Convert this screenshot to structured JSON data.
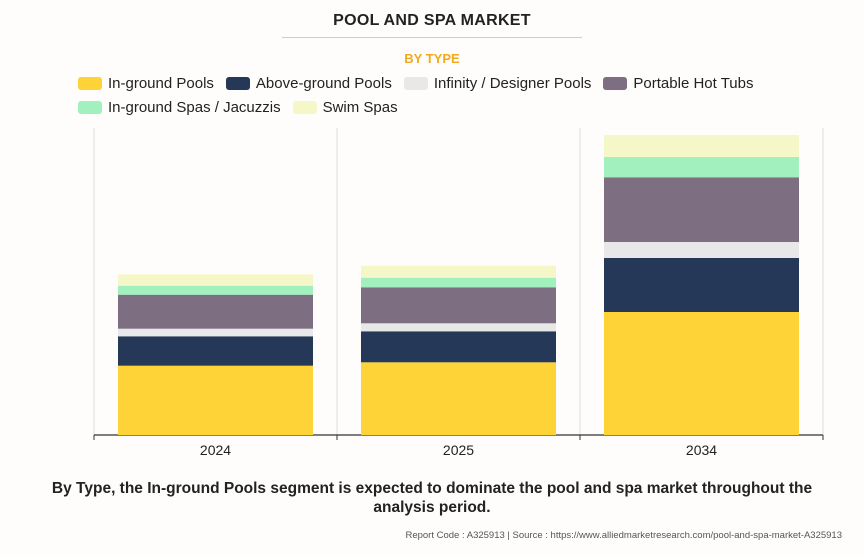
{
  "chart_data": {
    "type": "bar",
    "stacked": true,
    "title": "POOL AND SPA MARKET",
    "subtitle": "BY TYPE",
    "categories": [
      "2024",
      "2025",
      "2034"
    ],
    "series": [
      {
        "name": "In-ground Pools",
        "color": "#fdd338",
        "values": [
          69.3,
          72.7,
          123
        ]
      },
      {
        "name": "Above-ground Pools",
        "color": "#253858",
        "values": [
          29.4,
          31,
          54
        ]
      },
      {
        "name": "Infinity / Designer Pools",
        "color": "#e8e8e8",
        "values": [
          7.6,
          8,
          16
        ]
      },
      {
        "name": "Portable Hot Tubs",
        "color": "#7d6e82",
        "values": [
          34,
          36,
          64.7
        ]
      },
      {
        "name": "In-ground Spas / Jacuzzis",
        "color": "#a1f0bd",
        "values": [
          9,
          9.6,
          20.3
        ]
      },
      {
        "name": "Swim Spas",
        "color": "#f6f7c8",
        "values": [
          11.4,
          12,
          22
        ]
      }
    ],
    "ylim": [
      0,
      300
    ],
    "y_axis_shown": false,
    "grid": "vertical category separators",
    "legend": "top"
  },
  "caption": "By Type, the In-ground Pools segment is expected to dominate the pool and spa market throughout the analysis period.",
  "footer": "Report Code : A325913  |  Source : https://www.alliedmarketresearch.com/pool-and-spa-market-A325913"
}
